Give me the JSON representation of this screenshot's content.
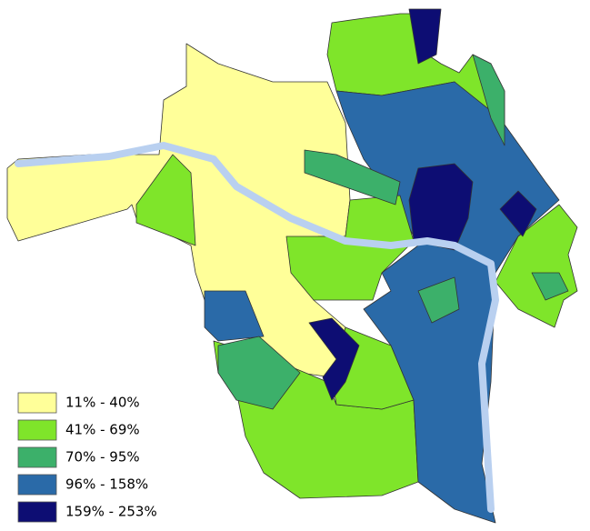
{
  "legend": {
    "items": [
      {
        "label": "11% - 40%",
        "color": "#ffff99"
      },
      {
        "label": "41% - 69%",
        "color": "#7fe52a"
      },
      {
        "label": "70% - 95%",
        "color": "#3cb06a"
      },
      {
        "label": "96% - 158%",
        "color": "#2a6aa8"
      },
      {
        "label": "159% - 253%",
        "color": "#0d0d73"
      }
    ]
  }
}
